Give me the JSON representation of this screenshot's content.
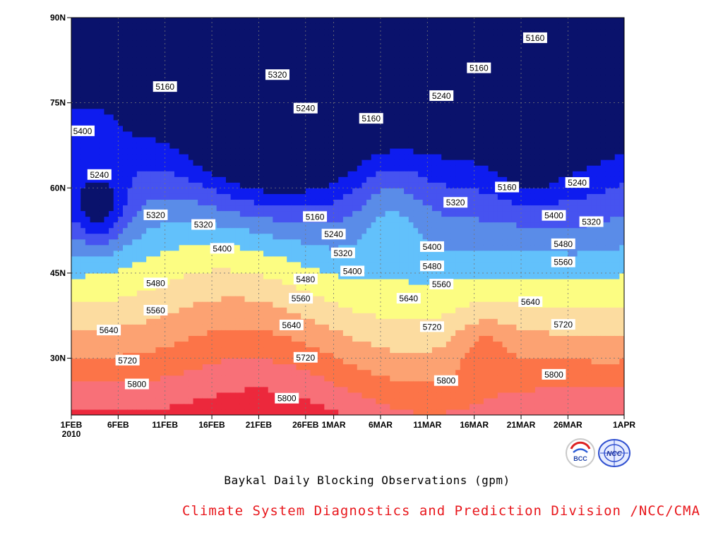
{
  "chart_data": {
    "type": "contour",
    "title": "Baykal Daily Blocking Observations (gpm)",
    "x_ticks": [
      "1FEB",
      "6FEB",
      "11FEB",
      "16FEB",
      "21FEB",
      "26FEB",
      "1MAR",
      "6MAR",
      "11MAR",
      "16MAR",
      "21MAR",
      "26MAR",
      "1APR"
    ],
    "x_tick_days": [
      0,
      5,
      10,
      15,
      20,
      25,
      28,
      33,
      38,
      43,
      48,
      53,
      59
    ],
    "year_label": "2010",
    "xlim": [
      0,
      59
    ],
    "y_ticks": [
      "30N",
      "45N",
      "60N",
      "75N",
      "90N"
    ],
    "y_tick_values": [
      30,
      45,
      60,
      75,
      90
    ],
    "ylim": [
      20,
      90
    ],
    "grid": true,
    "contour_interval": 80,
    "levels": [
      5160,
      5240,
      5320,
      5400,
      5480,
      5560,
      5640,
      5720,
      5800,
      5880
    ],
    "level_colors": [
      "#0e1cef",
      "#4653f0",
      "#5a8ce8",
      "#62c1fb",
      "#fcfd82",
      "#fcdca0",
      "#fca272",
      "#fc7448",
      "#f87078",
      "#ec283c"
    ],
    "below_min_color": "#0a126c",
    "contour_labels": [
      {
        "text": "5400",
        "x": 1.2,
        "lat": 70.0
      },
      {
        "text": "5240",
        "x": 3.0,
        "lat": 62.3
      },
      {
        "text": "5160",
        "x": 10.0,
        "lat": 77.8
      },
      {
        "text": "5320",
        "x": 9.0,
        "lat": 55.2
      },
      {
        "text": "5320",
        "x": 14.1,
        "lat": 53.5
      },
      {
        "text": "5400",
        "x": 16.1,
        "lat": 49.3
      },
      {
        "text": "5480",
        "x": 9.0,
        "lat": 43.2
      },
      {
        "text": "5560",
        "x": 9.0,
        "lat": 38.4
      },
      {
        "text": "5640",
        "x": 4.0,
        "lat": 34.9
      },
      {
        "text": "5720",
        "x": 6.0,
        "lat": 29.6
      },
      {
        "text": "5800",
        "x": 7.0,
        "lat": 25.4
      },
      {
        "text": "5320",
        "x": 22.0,
        "lat": 79.9
      },
      {
        "text": "5240",
        "x": 25.0,
        "lat": 74.0
      },
      {
        "text": "5160",
        "x": 26.0,
        "lat": 54.9
      },
      {
        "text": "5240",
        "x": 28.0,
        "lat": 51.8
      },
      {
        "text": "5320",
        "x": 29.0,
        "lat": 48.5
      },
      {
        "text": "5400",
        "x": 30.0,
        "lat": 45.3
      },
      {
        "text": "5480",
        "x": 25.0,
        "lat": 43.9
      },
      {
        "text": "5560",
        "x": 24.5,
        "lat": 40.5
      },
      {
        "text": "5640",
        "x": 23.5,
        "lat": 35.8
      },
      {
        "text": "5720",
        "x": 25.0,
        "lat": 30.1
      },
      {
        "text": "5800",
        "x": 23.0,
        "lat": 22.9
      },
      {
        "text": "5160",
        "x": 32.0,
        "lat": 72.2
      },
      {
        "text": "5240",
        "x": 39.5,
        "lat": 76.2
      },
      {
        "text": "5160",
        "x": 43.5,
        "lat": 81.1
      },
      {
        "text": "5160",
        "x": 49.5,
        "lat": 86.4
      },
      {
        "text": "5160",
        "x": 46.5,
        "lat": 60.1
      },
      {
        "text": "5320",
        "x": 41.0,
        "lat": 57.4
      },
      {
        "text": "5400",
        "x": 38.5,
        "lat": 49.6
      },
      {
        "text": "5480",
        "x": 38.5,
        "lat": 46.2
      },
      {
        "text": "5560",
        "x": 39.5,
        "lat": 43.0
      },
      {
        "text": "5640",
        "x": 36.0,
        "lat": 40.5
      },
      {
        "text": "5720",
        "x": 38.5,
        "lat": 35.5
      },
      {
        "text": "5800",
        "x": 40.0,
        "lat": 26.0
      },
      {
        "text": "5240",
        "x": 54.0,
        "lat": 60.9
      },
      {
        "text": "5400",
        "x": 51.5,
        "lat": 55.1
      },
      {
        "text": "5320",
        "x": 55.5,
        "lat": 54.0
      },
      {
        "text": "5480",
        "x": 52.5,
        "lat": 50.1
      },
      {
        "text": "5560",
        "x": 52.5,
        "lat": 46.9
      },
      {
        "text": "5640",
        "x": 49.0,
        "lat": 39.9
      },
      {
        "text": "5720",
        "x": 52.5,
        "lat": 35.9
      },
      {
        "text": "5800",
        "x": 51.5,
        "lat": 27.1
      }
    ]
  },
  "caption": {
    "title": "Baykal Daily Blocking Observations (gpm)",
    "organization": "Climate System Diagnostics and Prediction Division /NCC/CMA"
  },
  "logos": {
    "bcc_text": "BCC",
    "ncc_text": "NCC"
  }
}
